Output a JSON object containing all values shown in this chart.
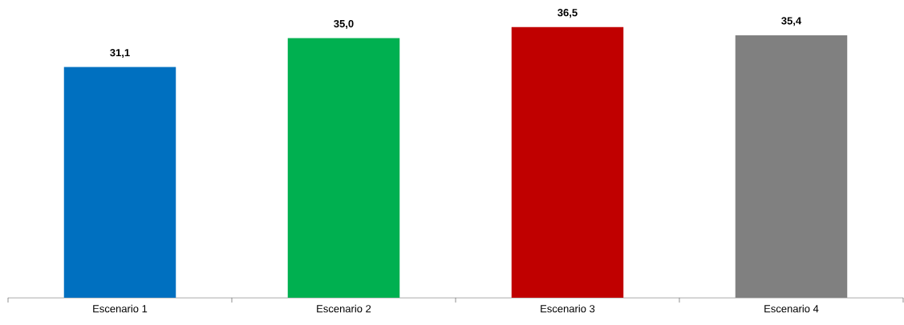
{
  "chart_data": {
    "type": "bar",
    "categories": [
      "Escenario 1",
      "Escenario 2",
      "Escenario 3",
      "Escenario 4"
    ],
    "values": [
      31.1,
      35.0,
      36.5,
      35.4
    ],
    "colors": [
      "#0070c0",
      "#00b050",
      "#c00000",
      "#808080"
    ],
    "value_labels": [
      "31,1",
      "35,0",
      "36,5",
      "35,4"
    ],
    "tick_labels": "x"
  }
}
